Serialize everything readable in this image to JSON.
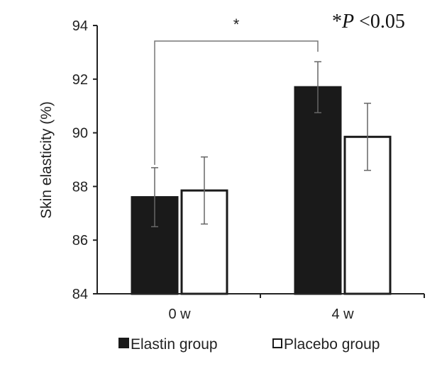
{
  "chart_data": {
    "type": "bar",
    "categories": [
      "0 w",
      "4 w"
    ],
    "series": [
      {
        "name": "Elastin group",
        "values": [
          87.6,
          91.7
        ],
        "errors": [
          1.1,
          0.95
        ],
        "color": "#1a1a1a"
      },
      {
        "name": "Placebo group",
        "values": [
          87.85,
          89.85
        ],
        "errors": [
          1.25,
          1.25
        ],
        "color": "#ffffff"
      }
    ],
    "ylabel": "Skin elasticity (%)",
    "ylim": [
      84,
      94
    ],
    "yticks": [
      84,
      86,
      88,
      90,
      92,
      94
    ],
    "grid": false,
    "legend_position": "bottom",
    "significance": {
      "label": "*",
      "between": "Elastin group 0 w vs 4 w"
    },
    "annotation": {
      "star": "*",
      "p": "P",
      "rest": " <0.05"
    }
  }
}
